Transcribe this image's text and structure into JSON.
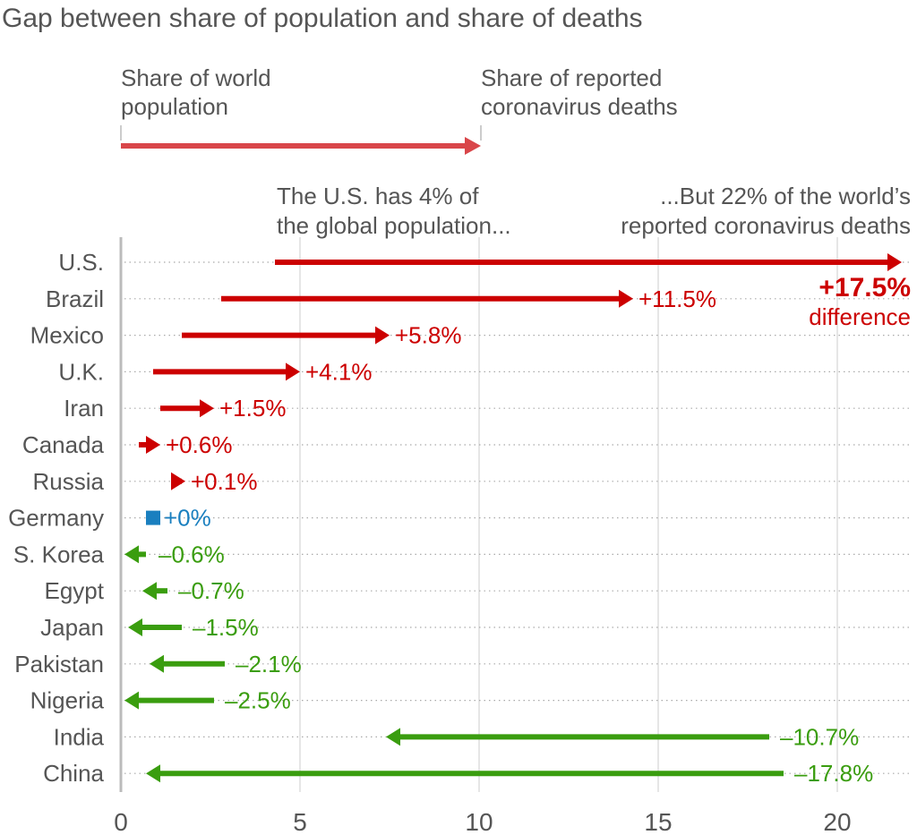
{
  "title": "Gap between share of population and share of deaths",
  "key": {
    "start_label_line1": "Share of world",
    "start_label_line2": "population",
    "end_label_line1": "Share of reported",
    "end_label_line2": "coronavirus deaths"
  },
  "annotations": {
    "us_pop_line1": "The U.S. has 4% of",
    "us_pop_line2": "the global population...",
    "us_deaths_line1": "...But 22% of the world’s",
    "us_deaths_line2": "reported coronavirus deaths",
    "us_diff_value": "+17.5%",
    "us_diff_word": "difference"
  },
  "colors": {
    "positive": "#cc0000",
    "negative": "#3a9d0f",
    "neutral": "#1a7fbf",
    "key_arrow": "#d9464a",
    "text": "#555555",
    "grid": "#dddddd",
    "dots": "#aaaaaa"
  },
  "chart_data": {
    "type": "arrow-dumbbell",
    "xlim": [
      0,
      22
    ],
    "xticks": [
      0,
      5,
      10,
      15,
      20
    ],
    "rows": [
      {
        "country": "U.S.",
        "population_share": 4.3,
        "deaths_share": 21.8,
        "difference": "+17.5%"
      },
      {
        "country": "Brazil",
        "population_share": 2.8,
        "deaths_share": 14.3,
        "difference": "+11.5%"
      },
      {
        "country": "Mexico",
        "population_share": 1.7,
        "deaths_share": 7.5,
        "difference": "+5.8%"
      },
      {
        "country": "U.K.",
        "population_share": 0.9,
        "deaths_share": 5.0,
        "difference": "+4.1%"
      },
      {
        "country": "Iran",
        "population_share": 1.1,
        "deaths_share": 2.6,
        "difference": "+1.5%"
      },
      {
        "country": "Canada",
        "population_share": 0.5,
        "deaths_share": 1.1,
        "difference": "+0.6%"
      },
      {
        "country": "Russia",
        "population_share": 1.7,
        "deaths_share": 1.8,
        "difference": "+0.1%"
      },
      {
        "country": "Germany",
        "population_share": 0.9,
        "deaths_share": 0.9,
        "difference": "+0%"
      },
      {
        "country": "S. Korea",
        "population_share": 0.7,
        "deaths_share": 0.1,
        "difference": "–0.6%"
      },
      {
        "country": "Egypt",
        "population_share": 1.3,
        "deaths_share": 0.6,
        "difference": "–0.7%"
      },
      {
        "country": "Japan",
        "population_share": 1.7,
        "deaths_share": 0.2,
        "difference": "–1.5%"
      },
      {
        "country": "Pakistan",
        "population_share": 2.9,
        "deaths_share": 0.8,
        "difference": "–2.1%"
      },
      {
        "country": "Nigeria",
        "population_share": 2.6,
        "deaths_share": 0.1,
        "difference": "–2.5%"
      },
      {
        "country": "India",
        "population_share": 18.1,
        "deaths_share": 7.4,
        "difference": "–10.7%"
      },
      {
        "country": "China",
        "population_share": 18.5,
        "deaths_share": 0.7,
        "difference": "–17.8%"
      }
    ]
  }
}
